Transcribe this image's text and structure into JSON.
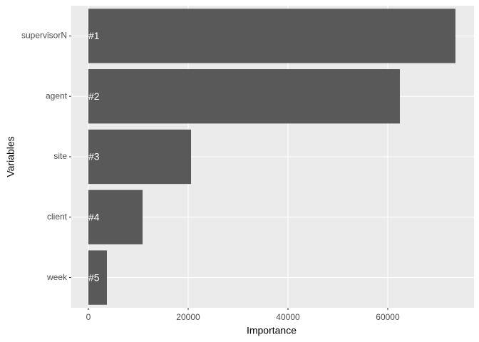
{
  "chart_data": {
    "type": "bar",
    "orientation": "horizontal",
    "xlabel": "Importance",
    "ylabel": "Variables",
    "categories": [
      "supervisorN",
      "agent",
      "site",
      "client",
      "week"
    ],
    "values": [
      73570,
      62430,
      20570,
      10860,
      3710
    ],
    "bar_labels": [
      "#1",
      "#2",
      "#3",
      "#4",
      "#5"
    ],
    "color": "#595959",
    "xlim": [
      -3430,
      77290
    ],
    "xticks": [
      0,
      20000,
      40000,
      60000
    ],
    "grid": true
  }
}
